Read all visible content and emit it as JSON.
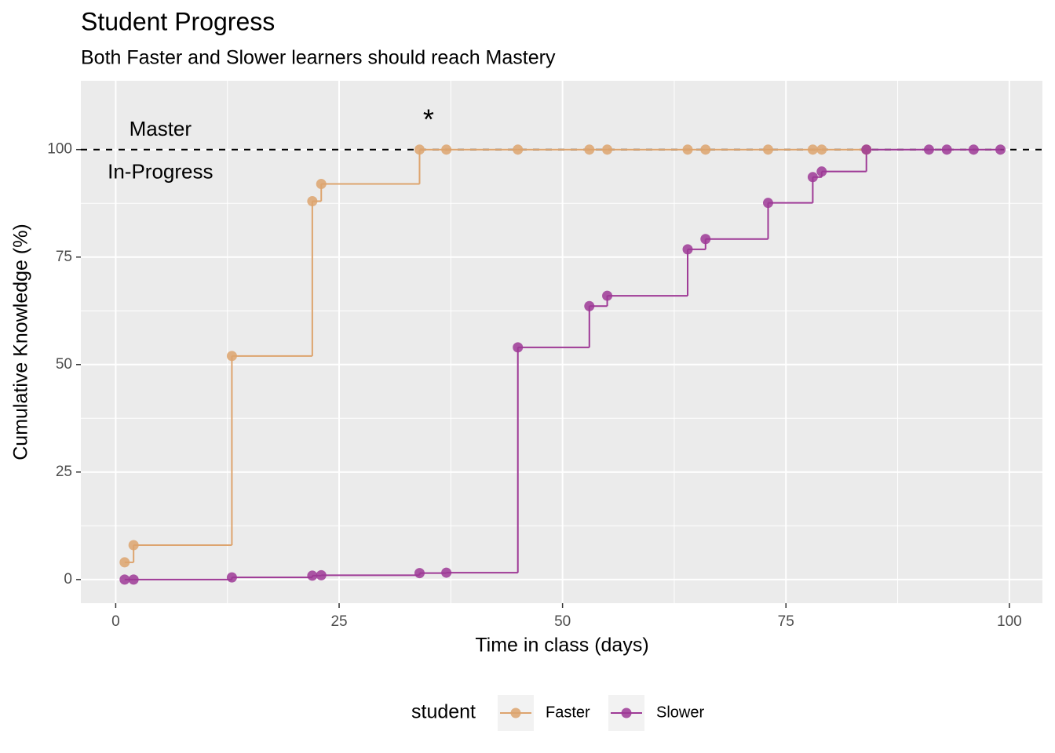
{
  "chart_data": {
    "type": "step",
    "title": "Student Progress",
    "subtitle": "Both Faster and Slower learners should reach Mastery",
    "x_label": "Time in class (days)",
    "y_label": "Cumulative Knowledge (%)",
    "legend_title": "student",
    "legend": "bottom",
    "grid": true,
    "xlim": [
      -3.9,
      103.7
    ],
    "ylim": [
      -5.5,
      116
    ],
    "xticks": [
      0,
      25,
      50,
      75,
      100
    ],
    "yticks": [
      0,
      25,
      50,
      75,
      100
    ],
    "hline": 100,
    "annotations": [
      {
        "text": "Master",
        "x": 5,
        "y": 104.5
      },
      {
        "text": "In-Progress",
        "x": 5,
        "y": 94.5
      },
      {
        "text": "*",
        "x": 35,
        "y": 106.5
      }
    ],
    "series": [
      {
        "name": "Faster",
        "color": "#dda46e",
        "x": [
          1,
          2,
          13,
          22,
          23,
          34,
          37,
          45,
          53,
          55,
          64,
          66,
          73,
          78,
          79,
          84
        ],
        "values": [
          4,
          8,
          52,
          88,
          92,
          100,
          100,
          100,
          100,
          100,
          100,
          100,
          100,
          100,
          100,
          100
        ]
      },
      {
        "name": "Slower",
        "color": "#9e3a96",
        "x": [
          1,
          2,
          13,
          22,
          23,
          34,
          37,
          45,
          53,
          55,
          64,
          66,
          73,
          78,
          79,
          84,
          91,
          93,
          96,
          99
        ],
        "values": [
          0,
          0,
          0.5,
          0.9,
          1,
          1.5,
          1.6,
          54,
          63.6,
          66,
          76.8,
          79.2,
          87.6,
          93.6,
          94.9,
          100,
          100,
          100,
          100,
          100
        ]
      }
    ]
  }
}
